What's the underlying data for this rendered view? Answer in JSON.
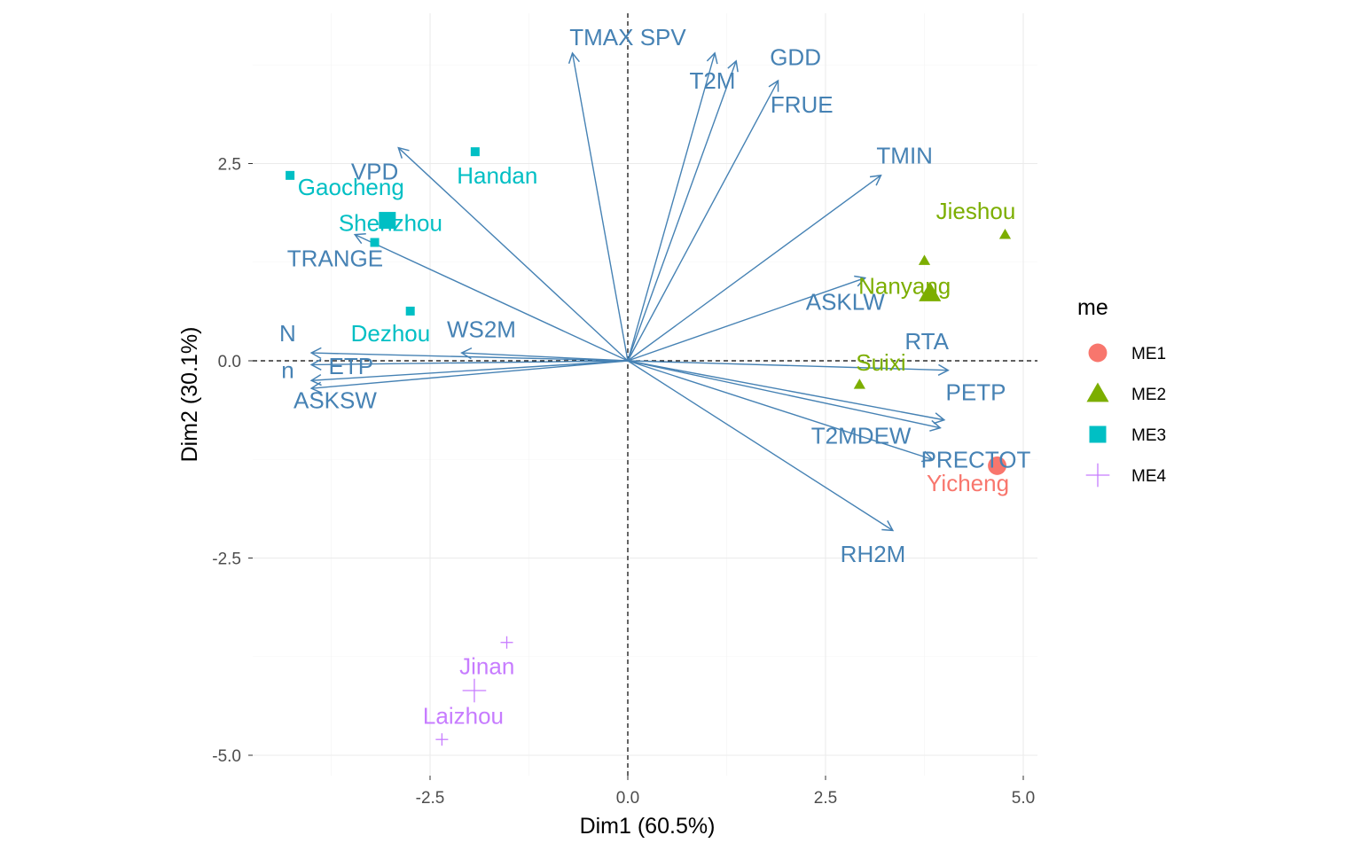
{
  "chart_data": {
    "type": "scatter",
    "subtype": "pca-biplot",
    "xlabel": "Dim1 (60.5%)",
    "ylabel": "Dim2 (30.1%)",
    "xlim": [
      -5.0,
      5.2
    ],
    "ylim": [
      -5.25,
      4.4
    ],
    "x_ticks": [
      -2.5,
      0.0,
      2.5,
      5.0
    ],
    "x_tick_labels": [
      "-2.5",
      "0.0",
      "2.5",
      "5.0"
    ],
    "y_ticks": [
      -5.0,
      -2.5,
      0.0,
      2.5
    ],
    "y_tick_labels": [
      "-5.0",
      "-2.5",
      "0.0",
      "2.5"
    ],
    "grid": true,
    "reference_lines": {
      "x": 0,
      "y": 0
    },
    "variable_color": "#4682B4",
    "variables": [
      {
        "name": "TMAX SPV",
        "x": -0.7,
        "y": 3.9
      },
      {
        "name": "T2M",
        "x": 1.1,
        "y": 3.9
      },
      {
        "name": "GDD",
        "x": 1.37,
        "y": 3.8
      },
      {
        "name": "FRUE",
        "x": 1.9,
        "y": 3.55
      },
      {
        "name": "TMIN",
        "x": 3.2,
        "y": 2.35
      },
      {
        "name": "VPD",
        "x": -2.9,
        "y": 2.7
      },
      {
        "name": "TRANGE",
        "x": -3.45,
        "y": 1.6
      },
      {
        "name": "ASKLW",
        "x": 3.0,
        "y": 1.05
      },
      {
        "name": "N",
        "x": -4.0,
        "y": 0.1
      },
      {
        "name": "WS2M",
        "x": -2.1,
        "y": 0.1
      },
      {
        "name": "ETP",
        "x": -4.0,
        "y": -0.05
      },
      {
        "name": "n",
        "x": -4.0,
        "y": -0.25
      },
      {
        "name": "ASKSW",
        "x": -4.0,
        "y": -0.35
      },
      {
        "name": "RTA",
        "x": 4.05,
        "y": -0.12
      },
      {
        "name": "PETP",
        "x": 4.0,
        "y": -0.75
      },
      {
        "name": "T2MDEW",
        "x": 3.95,
        "y": -0.85
      },
      {
        "name": "PRECTOT",
        "x": 3.85,
        "y": -1.25
      },
      {
        "name": "RH2M",
        "x": 3.35,
        "y": -2.15
      }
    ],
    "variable_label_positions": [
      {
        "name": "TMAX SPV",
        "x": 0.0,
        "y": 4.1
      },
      {
        "name": "T2M",
        "x": 1.07,
        "y": 3.55
      },
      {
        "name": "GDD",
        "x": 2.12,
        "y": 3.85
      },
      {
        "name": "FRUE",
        "x": 2.2,
        "y": 3.25
      },
      {
        "name": "TMIN",
        "x": 3.5,
        "y": 2.6
      },
      {
        "name": "VPD",
        "x": -3.2,
        "y": 2.4
      },
      {
        "name": "TRANGE",
        "x": -3.7,
        "y": 1.3
      },
      {
        "name": "ASKLW",
        "x": 2.75,
        "y": 0.75
      },
      {
        "name": "N",
        "x": -4.3,
        "y": 0.35
      },
      {
        "name": "WS2M",
        "x": -1.85,
        "y": 0.4
      },
      {
        "name": "ETP",
        "x": -3.5,
        "y": -0.07
      },
      {
        "name": "n",
        "x": -4.3,
        "y": -0.12
      },
      {
        "name": "ASKSW",
        "x": -3.7,
        "y": -0.5
      },
      {
        "name": "RTA",
        "x": 3.78,
        "y": 0.25
      },
      {
        "name": "PETP",
        "x": 4.4,
        "y": -0.4
      },
      {
        "name": "T2MDEW",
        "x": 2.95,
        "y": -0.95
      },
      {
        "name": "PRECTOT",
        "x": 4.4,
        "y": -1.25
      },
      {
        "name": "RH2M",
        "x": 3.1,
        "y": -2.45
      }
    ],
    "groups": [
      {
        "name": "ME1",
        "color": "#F8766D",
        "shape": "circle"
      },
      {
        "name": "ME2",
        "color": "#7CAE00",
        "shape": "triangle"
      },
      {
        "name": "ME3",
        "color": "#00BFC4",
        "shape": "square"
      },
      {
        "name": "ME4",
        "color": "#C77CFF",
        "shape": "plus"
      }
    ],
    "individuals": [
      {
        "label": "Yicheng",
        "group": "ME1",
        "x": 4.67,
        "y": -1.33,
        "label_x": 4.3,
        "label_y": -1.55
      },
      {
        "label": "Jieshou",
        "group": "ME2",
        "x": 4.77,
        "y": 1.6,
        "label_x": 4.4,
        "label_y": 1.9
      },
      {
        "label": "Nanyang",
        "group": "ME2",
        "x": 3.75,
        "y": 1.27,
        "label_x": 3.5,
        "label_y": 0.95
      },
      {
        "label": "Suixi",
        "group": "ME2",
        "x": 2.93,
        "y": -0.3,
        "label_x": 3.2,
        "label_y": -0.02
      },
      {
        "label": "Handan",
        "group": "ME3",
        "x": -1.93,
        "y": 2.65,
        "label_x": -1.65,
        "label_y": 2.35
      },
      {
        "label": "Gaocheng",
        "group": "ME3",
        "x": -4.27,
        "y": 2.35,
        "label_x": -3.5,
        "label_y": 2.2
      },
      {
        "label": "Shenzhou",
        "group": "ME3",
        "x": -3.2,
        "y": 1.5,
        "label_x": -3.0,
        "label_y": 1.75
      },
      {
        "label": "Dezhou",
        "group": "ME3",
        "x": -2.75,
        "y": 0.63,
        "label_x": -3.0,
        "label_y": 0.35
      },
      {
        "label": "Jinan",
        "group": "ME4",
        "x": -1.53,
        "y": -3.57,
        "label_x": -1.78,
        "label_y": -3.87
      },
      {
        "label": "Laizhou",
        "group": "ME4",
        "x": -2.35,
        "y": -4.8,
        "label_x": -2.08,
        "label_y": -4.5
      }
    ],
    "group_centroids": [
      {
        "group": "ME1",
        "x": 4.67,
        "y": -1.33
      },
      {
        "group": "ME2",
        "x": 3.82,
        "y": 0.86
      },
      {
        "group": "ME3",
        "x": -3.04,
        "y": 1.78
      },
      {
        "group": "ME4",
        "x": -1.94,
        "y": -4.18
      }
    ],
    "legend": {
      "title": "me",
      "position": "right",
      "entries": [
        "ME1",
        "ME2",
        "ME3",
        "ME4"
      ]
    }
  }
}
